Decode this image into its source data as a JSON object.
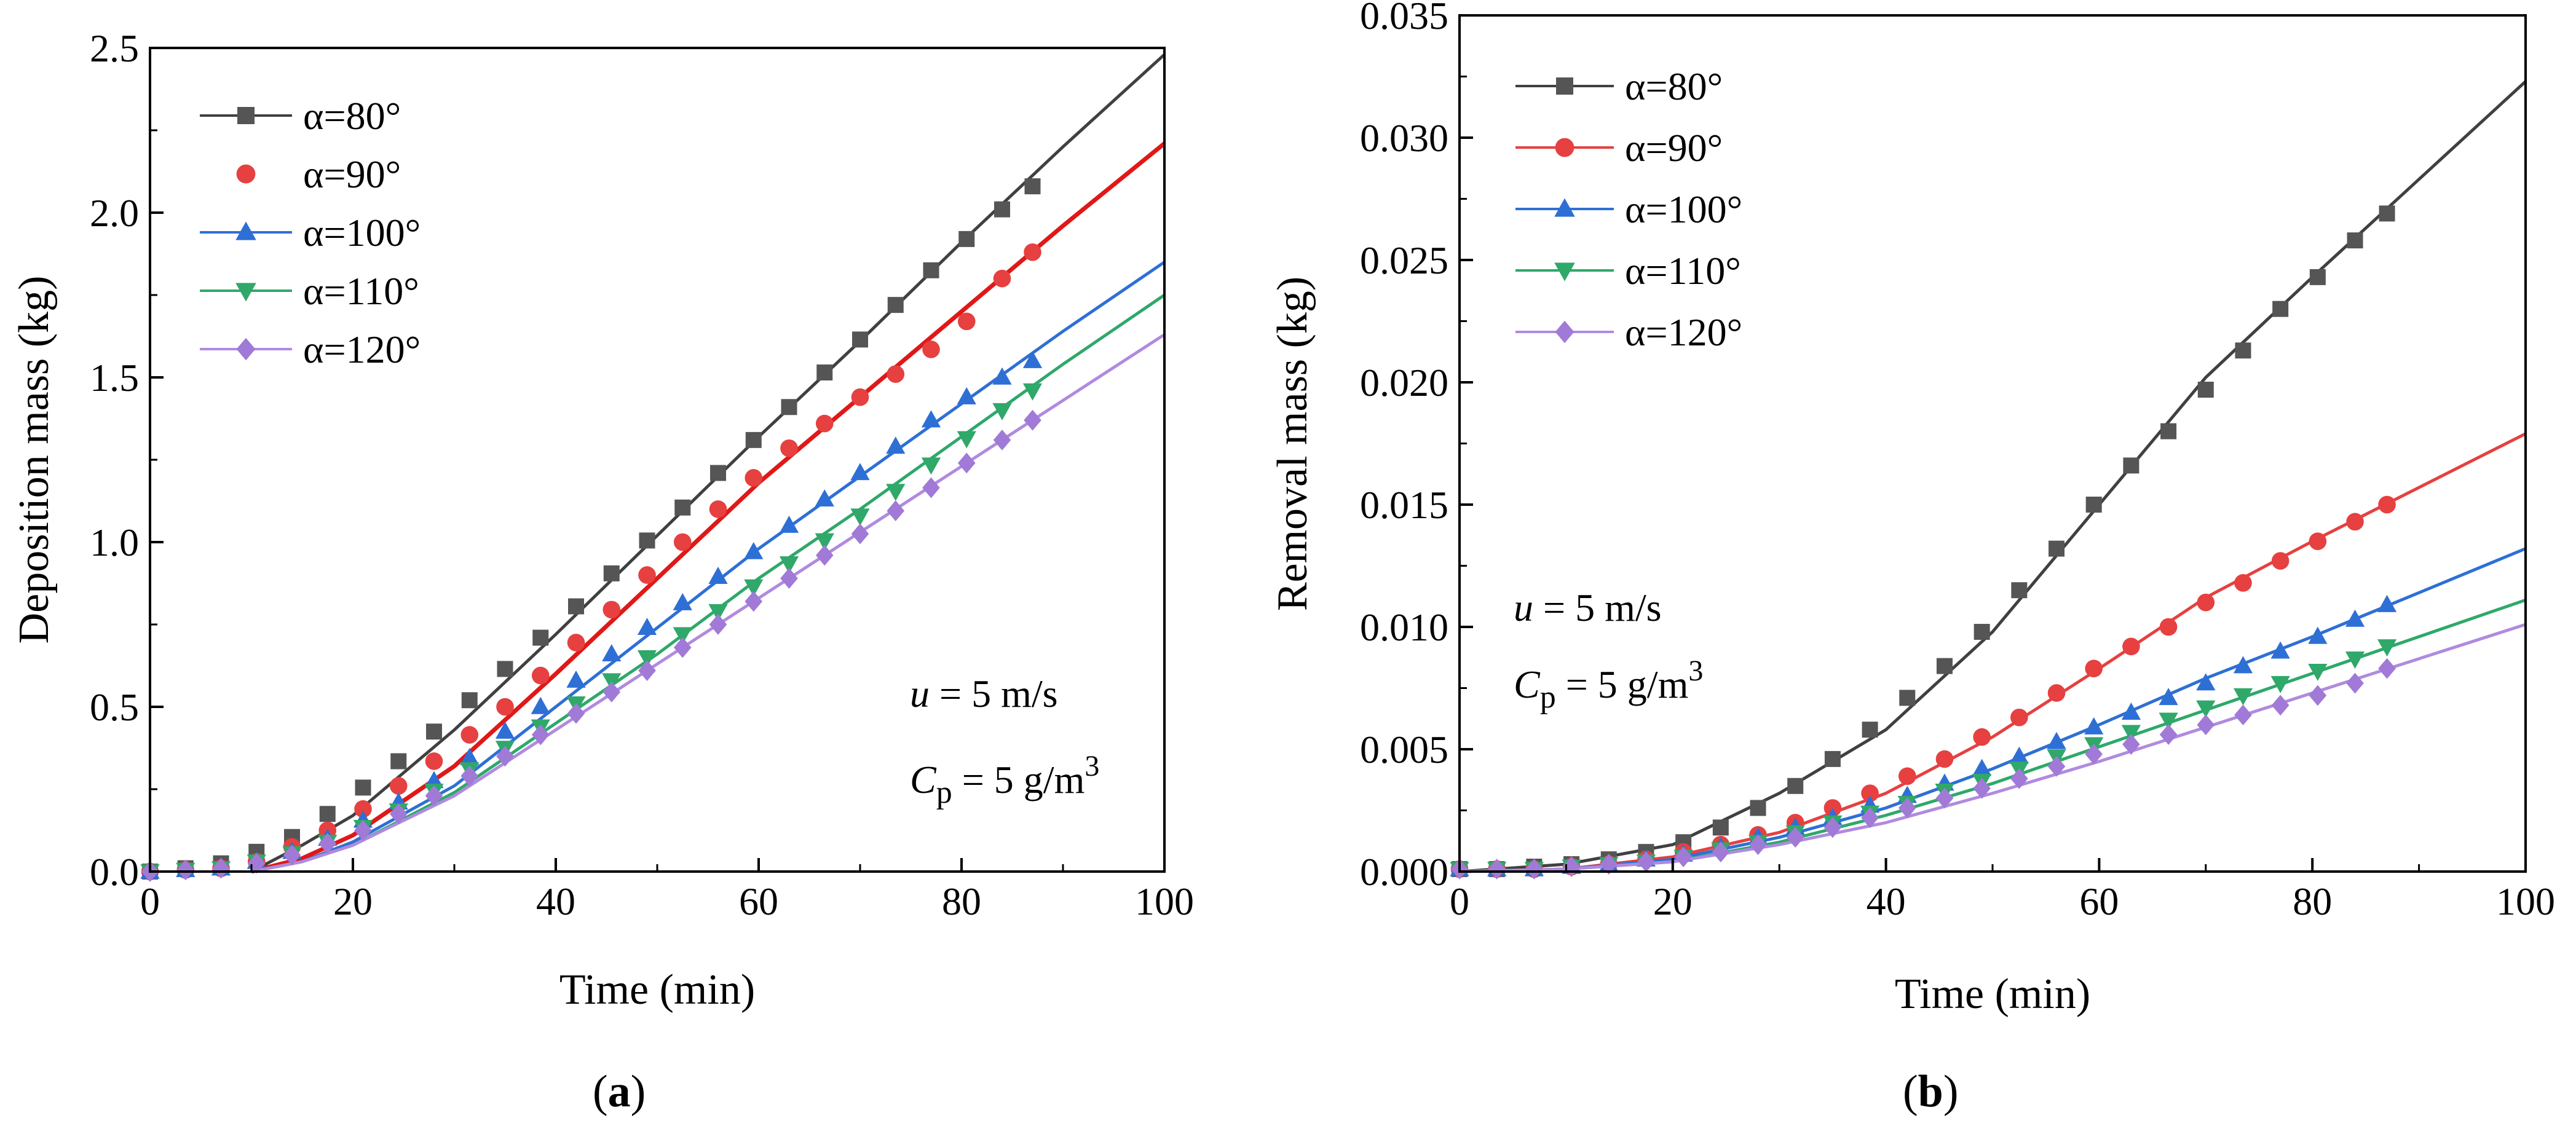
{
  "chart_data": [
    {
      "type": "line",
      "panel_label": "(a)",
      "panel_letter": "a",
      "xlabel": "Time (min)",
      "ylabel": "Deposition mass (kg)",
      "xlim": [
        0,
        100
      ],
      "ylim": [
        0,
        2.5
      ],
      "xticks": [
        "0",
        "20",
        "40",
        "60",
        "80",
        "100"
      ],
      "yticks": [
        "0.0",
        "0.5",
        "1.0",
        "1.5",
        "2.0",
        "2.5"
      ],
      "legend_position": "top-left",
      "annotation": {
        "u_sym": "u",
        "u_rest": " = 5 m/s",
        "c_sym": "C",
        "c_sub": "p",
        "c_rest": " = 5 g/m",
        "c_sup": "3"
      },
      "marker_x": [
        0,
        3.5,
        7,
        10.5,
        14,
        17.5,
        21,
        24.5,
        28,
        31.5,
        35,
        38.5,
        42,
        45.5,
        49,
        52.5,
        56,
        59.5,
        63,
        66.5,
        70,
        73.5,
        77,
        80.5,
        84,
        87
      ],
      "fit_x": [
        10,
        15,
        20,
        30,
        40,
        50,
        60,
        70,
        80,
        90,
        100
      ],
      "series": [
        {
          "name": "α=80°",
          "color": "#555555",
          "marker": "square",
          "fit_color": "#404040",
          "markers": [
            0,
            0.01,
            0.025,
            0.06,
            0.105,
            0.175,
            0.255,
            0.335,
            0.425,
            0.52,
            0.615,
            0.71,
            0.805,
            0.905,
            1.005,
            1.105,
            1.21,
            1.31,
            1.41,
            1.515,
            1.615,
            1.72,
            1.825,
            1.92,
            2.01,
            2.08
          ],
          "fit": [
            0,
            0.08,
            0.17,
            0.43,
            0.72,
            1.02,
            1.32,
            1.61,
            1.91,
            2.2,
            2.48
          ]
        },
        {
          "name": "α=90°",
          "color": "#e64040",
          "marker": "circle",
          "fit_color": "#e01818",
          "markers": [
            0,
            0.005,
            0.01,
            0.03,
            0.075,
            0.125,
            0.19,
            0.26,
            0.335,
            0.415,
            0.5,
            0.595,
            0.695,
            0.795,
            0.9,
            1.0,
            1.1,
            1.195,
            1.285,
            1.36,
            1.44,
            1.51,
            1.585,
            1.67,
            1.8,
            1.88
          ],
          "fit": [
            0,
            0.04,
            0.11,
            0.32,
            0.6,
            0.89,
            1.18,
            1.44,
            1.7,
            1.96,
            2.21
          ]
        },
        {
          "name": "α=100°",
          "color": "#2e6fd6",
          "marker": "triangle-up",
          "fit_color": "#2e6fd6",
          "markers": [
            0,
            0.005,
            0.01,
            0.03,
            0.06,
            0.1,
            0.155,
            0.21,
            0.275,
            0.345,
            0.425,
            0.5,
            0.58,
            0.66,
            0.74,
            0.815,
            0.895,
            0.97,
            1.05,
            1.13,
            1.21,
            1.29,
            1.37,
            1.44,
            1.5,
            1.55
          ],
          "fit": [
            0,
            0.03,
            0.09,
            0.26,
            0.5,
            0.74,
            0.98,
            1.2,
            1.42,
            1.64,
            1.85
          ]
        },
        {
          "name": "α=110°",
          "color": "#2fa86a",
          "marker": "triangle-down",
          "fit_color": "#2fa86a",
          "markers": [
            0,
            0.005,
            0.01,
            0.03,
            0.055,
            0.09,
            0.135,
            0.185,
            0.245,
            0.31,
            0.375,
            0.44,
            0.51,
            0.58,
            0.65,
            0.72,
            0.79,
            0.865,
            0.935,
            1.005,
            1.08,
            1.155,
            1.235,
            1.315,
            1.4,
            1.46
          ],
          "fit": [
            0,
            0.03,
            0.08,
            0.24,
            0.45,
            0.66,
            0.89,
            1.1,
            1.32,
            1.54,
            1.75
          ]
        },
        {
          "name": "α=120°",
          "color": "#a07ad6",
          "marker": "diamond",
          "fit_color": "#b08ae0",
          "markers": [
            0,
            0.005,
            0.01,
            0.025,
            0.05,
            0.085,
            0.125,
            0.175,
            0.23,
            0.29,
            0.35,
            0.415,
            0.48,
            0.545,
            0.61,
            0.68,
            0.75,
            0.82,
            0.89,
            0.96,
            1.025,
            1.095,
            1.165,
            1.24,
            1.31,
            1.37
          ],
          "fit": [
            0,
            0.03,
            0.08,
            0.23,
            0.43,
            0.63,
            0.83,
            1.03,
            1.23,
            1.43,
            1.63
          ]
        }
      ]
    },
    {
      "type": "line",
      "panel_label": "(b)",
      "panel_letter": "b",
      "xlabel": "Time (min)",
      "ylabel": "Removal mass (kg)",
      "xlim": [
        0,
        100
      ],
      "ylim": [
        0,
        0.035
      ],
      "xticks": [
        "0",
        "20",
        "40",
        "60",
        "80",
        "100"
      ],
      "yticks": [
        "0.000",
        "0.005",
        "0.010",
        "0.015",
        "0.020",
        "0.025",
        "0.030",
        "0.035"
      ],
      "legend_position": "top-left",
      "annotation": {
        "u_sym": "u",
        "u_rest": " = 5 m/s",
        "c_sym": "C",
        "c_sub": "p",
        "c_rest": " = 5 g/m",
        "c_sup": "3"
      },
      "marker_x": [
        0,
        3.5,
        7,
        10.5,
        14,
        17.5,
        21,
        24.5,
        28,
        31.5,
        35,
        38.5,
        42,
        45.5,
        49,
        52.5,
        56,
        59.5,
        63,
        66.5,
        70,
        73.5,
        77,
        80.5,
        84,
        87
      ],
      "fit_x": [
        0,
        10,
        20,
        30,
        40,
        50,
        60,
        70,
        80,
        90,
        100
      ],
      "series": [
        {
          "name": "α=80°",
          "color": "#555555",
          "marker": "square",
          "fit_color": "#404040",
          "markers": [
            0.0001,
            0.0001,
            0.0002,
            0.0003,
            0.0005,
            0.0008,
            0.0012,
            0.0018,
            0.0026,
            0.0035,
            0.0046,
            0.0058,
            0.0071,
            0.0084,
            0.0098,
            0.0115,
            0.0132,
            0.015,
            0.0166,
            0.018,
            0.0197,
            0.0213,
            0.023,
            0.0243,
            0.0258,
            0.0269
          ],
          "fit": [
            0,
            0.0003,
            0.0011,
            0.0032,
            0.0058,
            0.0098,
            0.015,
            0.0202,
            0.0243,
            0.0283,
            0.0323
          ]
        },
        {
          "name": "α=90°",
          "color": "#e64040",
          "marker": "circle",
          "fit_color": "#e64040",
          "markers": [
            0.0001,
            0.0001,
            0.0001,
            0.0002,
            0.0003,
            0.0005,
            0.0008,
            0.0011,
            0.0015,
            0.002,
            0.0026,
            0.0032,
            0.0039,
            0.0046,
            0.0055,
            0.0063,
            0.0073,
            0.0083,
            0.0092,
            0.01,
            0.011,
            0.0118,
            0.0127,
            0.0135,
            0.0143,
            0.015
          ],
          "fit": [
            0,
            0.0001,
            0.0006,
            0.0016,
            0.0032,
            0.0055,
            0.0083,
            0.0112,
            0.0135,
            0.0157,
            0.0179
          ]
        },
        {
          "name": "α=100°",
          "color": "#2e6fd6",
          "marker": "triangle-up",
          "fit_color": "#2e6fd6",
          "markers": [
            0.0001,
            0.0001,
            0.0001,
            0.0002,
            0.0003,
            0.0005,
            0.0007,
            0.001,
            0.0014,
            0.0018,
            0.0022,
            0.0027,
            0.0031,
            0.0036,
            0.0042,
            0.0047,
            0.0053,
            0.0059,
            0.0065,
            0.0071,
            0.0077,
            0.0084,
            0.009,
            0.0096,
            0.0103,
            0.0109
          ],
          "fit": [
            0,
            0.0001,
            0.0005,
            0.0014,
            0.0026,
            0.0042,
            0.006,
            0.0079,
            0.0096,
            0.0114,
            0.0132
          ]
        },
        {
          "name": "α=110°",
          "color": "#2fa86a",
          "marker": "triangle-down",
          "fit_color": "#2fa86a",
          "markers": [
            0.0001,
            0.0001,
            0.0001,
            0.0002,
            0.0003,
            0.0004,
            0.0006,
            0.0009,
            0.0012,
            0.0016,
            0.002,
            0.0024,
            0.0028,
            0.0033,
            0.0037,
            0.0042,
            0.0047,
            0.0052,
            0.0057,
            0.0062,
            0.0067,
            0.0072,
            0.0077,
            0.0082,
            0.0087,
            0.0092
          ],
          "fit": [
            0,
            0.0001,
            0.0004,
            0.0012,
            0.0023,
            0.0036,
            0.0051,
            0.0066,
            0.0081,
            0.0096,
            0.0111
          ]
        },
        {
          "name": "α=120°",
          "color": "#a07ad6",
          "marker": "diamond",
          "fit_color": "#b08ae0",
          "markers": [
            0.0001,
            0.0001,
            0.0001,
            0.0002,
            0.0003,
            0.0004,
            0.0006,
            0.0008,
            0.0011,
            0.0014,
            0.0018,
            0.0022,
            0.0026,
            0.003,
            0.0034,
            0.0038,
            0.0043,
            0.0048,
            0.0052,
            0.0056,
            0.006,
            0.0064,
            0.0068,
            0.0072,
            0.0077,
            0.0083
          ],
          "fit": [
            0,
            0.0001,
            0.0004,
            0.0011,
            0.002,
            0.0032,
            0.0045,
            0.0059,
            0.0073,
            0.0087,
            0.0101
          ]
        }
      ]
    }
  ]
}
